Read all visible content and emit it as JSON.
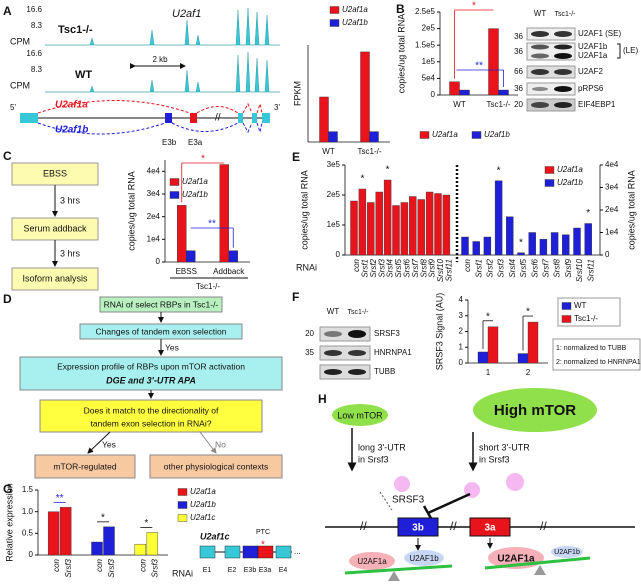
{
  "panels": {
    "A": {
      "label": "A",
      "track_labels": {
        "cpm": "CPM",
        "max": "16.6",
        "mid": "8.3"
      },
      "tracks": [
        "Tsc1-/-",
        "WT"
      ],
      "gene": "U2af1",
      "scale": "2 kb",
      "ends": [
        "5'",
        "3'"
      ],
      "isoforms": [
        "U2af1a",
        "U2af1b"
      ],
      "exons": [
        "E3b",
        "E3a"
      ],
      "chart": {
        "type": "bar",
        "ylabel": "FPKM",
        "categories": [
          "WT",
          "Tsc1-/-"
        ],
        "ylim": [
          0,
          140
        ],
        "series": [
          {
            "name": "U2af1a",
            "color": "#e8141c",
            "values": [
              65,
              130
            ]
          },
          {
            "name": "U2af1b",
            "color": "#1f1fd8",
            "values": [
              15,
              15
            ]
          }
        ]
      }
    },
    "B": {
      "label": "B",
      "chart": {
        "type": "bar",
        "ylabel": "copies/ug total RNA",
        "categories": [
          "WT",
          "Tsc1-/-"
        ],
        "ylim": [
          0,
          250000
        ],
        "yticks": [
          0,
          {
            "value": 50000,
            "label": "5e4"
          },
          {
            "value": 100000,
            "label": "1e5"
          },
          {
            "value": 150000,
            "label": "1.5e5"
          },
          {
            "value": 200000,
            "label": "2e5"
          },
          {
            "value": 250000,
            "label": "2.5e5"
          }
        ],
        "series": [
          {
            "name": "U2af1a",
            "color": "#e8141c",
            "values": [
              40000,
              200000
            ]
          },
          {
            "name": "U2af1b",
            "color": "#1f1fd8",
            "values": [
              15000,
              15000
            ]
          }
        ],
        "annotations": [
          "*",
          "**"
        ]
      },
      "blot": {
        "lanes": [
          "WT",
          "Tsc1-/-"
        ],
        "markers": [
          "36",
          "36",
          "66",
          "36",
          "20"
        ],
        "bands": [
          "U2AF1 (SE)",
          "U2AF1b",
          "U2AF1a",
          "(LE)",
          "U2AF2",
          "pRPS6",
          "EIF4EBP1"
        ]
      }
    },
    "C": {
      "label": "C",
      "flow": [
        "EBSS",
        "3 hrs",
        "Serum addback",
        "3 hrs",
        "Isoform analysis"
      ],
      "chart": {
        "type": "bar",
        "ylabel": "copies/ug total RNA",
        "categories": [
          "EBSS",
          "Addback"
        ],
        "group": "Tsc1-/-",
        "ylim": [
          0,
          45000
        ],
        "yticks": [
          0,
          {
            "value": 10000,
            "label": "1e4"
          },
          {
            "value": 20000,
            "label": "2e4"
          },
          {
            "value": 30000,
            "label": "3e4"
          },
          {
            "value": 40000,
            "label": "4e4"
          }
        ],
        "series": [
          {
            "name": "U2af1a",
            "color": "#e8141c",
            "values": [
              25000,
              43000
            ]
          },
          {
            "name": "U2af1b",
            "color": "#1f1fd8",
            "values": [
              5000,
              5000
            ]
          }
        ],
        "annotations": [
          "*",
          "**"
        ]
      }
    },
    "D": {
      "label": "D",
      "steps": [
        "RNAi of select RBPs in Tsc1-/-",
        "Changes of tandem exon selection",
        "Yes",
        "Expression profile of RBPs upon mTOR activation",
        "DGE and 3'-UTR APA",
        "Does it match to the directionality of",
        "tandem exon selection in RNAi?",
        "Yes",
        "No",
        "mTOR-regulated",
        "other physiological contexts"
      ]
    },
    "E": {
      "label": "E",
      "chart": {
        "type": "bar",
        "xlabel": "RNAi",
        "ylabel": "copies/ug total RNA",
        "categories": [
          "con",
          "Srsf1",
          "Srsf2",
          "Srsf3",
          "Srsf4",
          "Srsf5",
          "Srsf6",
          "Srsf7",
          "Srsf8",
          "Srsf9",
          "Srsf10",
          "Srsf11"
        ],
        "ylim": [
          0,
          300000
        ],
        "yticks": [
          0,
          {
            "value": 100000,
            "label": "1e5"
          },
          {
            "value": 200000,
            "label": "2e5"
          },
          {
            "value": 300000,
            "label": "3e5"
          }
        ],
        "y2lim": [
          0,
          40000
        ],
        "y2ticks": [
          0,
          {
            "value": 10000,
            "label": "1e4"
          },
          {
            "value": 20000,
            "label": "2e4"
          },
          {
            "value": 30000,
            "label": "3e4"
          },
          {
            "value": 40000,
            "label": "4e4"
          }
        ],
        "series": [
          {
            "name": "U2af1a",
            "color": "#e8141c",
            "values": [
              180000,
              220000,
              175000,
              210000,
              250000,
              165000,
              175000,
              195000,
              185000,
              210000,
              205000,
              200000
            ]
          },
          {
            "name": "U2af1b",
            "color": "#1f1fd8",
            "axis": "y2",
            "values": [
              8000,
              6000,
              8000,
              33000,
              17000,
              1000,
              10000,
              7000,
              10000,
              9000,
              12000,
              14000
            ]
          }
        ],
        "annotations": [
          "*",
          "*",
          "*",
          "*",
          "*"
        ]
      }
    },
    "F": {
      "label": "F",
      "blot": {
        "lanes": [
          "WT",
          "Tsc1-/-"
        ],
        "markers": [
          "20",
          "35"
        ],
        "bands": [
          "SRSF3",
          "HNRNPA1",
          "TUBB"
        ]
      },
      "chart": {
        "type": "bar",
        "ylabel": "SRSF3 Signal (AU)",
        "categories": [
          "1",
          "2"
        ],
        "ylim": [
          0,
          4
        ],
        "yticks": [
          0,
          1,
          2,
          3,
          4
        ],
        "series": [
          {
            "name": "WT",
            "color": "#1f1fd8",
            "values": [
              0.7,
              0.6
            ]
          },
          {
            "name": "Tsc1-/-",
            "color": "#e8141c",
            "values": [
              2.3,
              2.6
            ]
          }
        ],
        "annotations": [
          "*",
          "*"
        ]
      },
      "notes": [
        "1: normalized to TUBB",
        "2: normalized to HNRNPA1"
      ]
    },
    "G": {
      "label": "G",
      "chart": {
        "type": "bar",
        "xlabel": "RNAi",
        "ylabel": "Relative expression",
        "categories": [
          "con",
          "Srsf3"
        ],
        "ylim": [
          0,
          1.5
        ],
        "yticks": [
          0,
          0.5,
          {
            "value": 1,
            "label": "1.0"
          },
          1.5
        ],
        "series": [
          {
            "name": "U2af1a",
            "color": "#e8141c",
            "values": [
              1.0,
              1.1
            ]
          },
          {
            "name": "U2af1b",
            "color": "#1f1fd8",
            "values": [
              0.3,
              0.65
            ]
          },
          {
            "name": "U2af1c",
            "color": "#ffff33",
            "values": [
              0.25,
              0.52
            ]
          }
        ],
        "annotations": [
          "**",
          "*",
          "*"
        ]
      },
      "model": {
        "name": "U2af1c",
        "ptc": "PTC",
        "ptc_mark": "*",
        "exons": [
          "E1",
          "E2",
          "E3b",
          "E3a",
          "E4"
        ],
        "more": "..."
      }
    },
    "H": {
      "label": "H",
      "states": [
        "Low mTOR",
        "High mTOR"
      ],
      "utr": [
        "long 3'-UTR",
        "in Srsf3",
        "short 3'-UTR",
        "in Srsf3"
      ],
      "factor": "SRSF3",
      "exons": [
        "3b",
        "3a"
      ],
      "proteins": [
        "U2AF1a",
        "U2AF1b",
        "U2AF1a",
        "U2AF1b"
      ]
    }
  }
}
